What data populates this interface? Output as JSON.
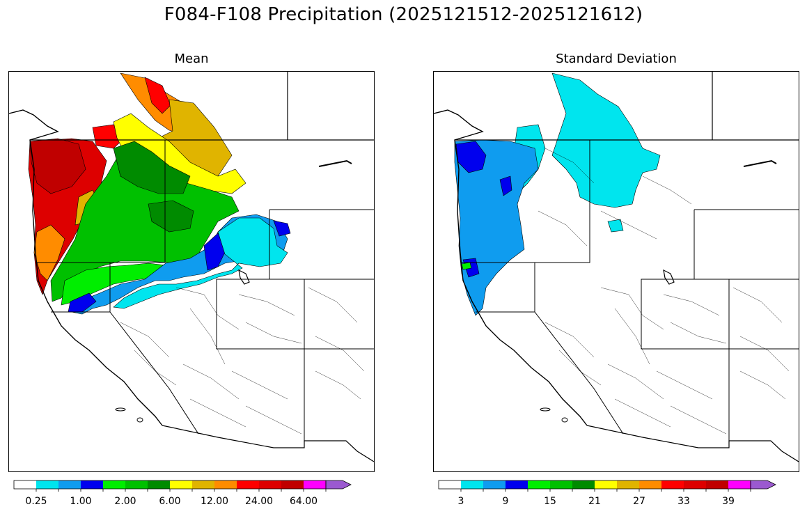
{
  "figure": {
    "title": "F084-F108 Precipitation (2025121512-2025121612)"
  },
  "panels": {
    "mean": {
      "title": "Mean",
      "colorbar": {
        "colors": [
          "#ffffff",
          "#00e5ee",
          "#0f9cef",
          "#0000ee",
          "#00ee00",
          "#00c000",
          "#008b00",
          "#ffff00",
          "#e0b400",
          "#ff8c00",
          "#ff0000",
          "#dd0000",
          "#c00000",
          "#ff00ff",
          "#9b59d0"
        ],
        "tick_labels": [
          "0.25",
          "1.00",
          "2.00",
          "6.00",
          "12.00",
          "24.00",
          "64.00"
        ],
        "tick_bins": [
          1,
          3,
          5,
          7,
          9,
          11,
          13
        ]
      }
    },
    "stdev": {
      "title": "Standard Deviation",
      "colorbar": {
        "colors": [
          "#ffffff",
          "#00e5ee",
          "#0f9cef",
          "#0000ee",
          "#00ee00",
          "#00c000",
          "#008b00",
          "#ffff00",
          "#e0b400",
          "#ff8c00",
          "#ff0000",
          "#dd0000",
          "#c00000",
          "#ff00ff",
          "#9b59d0"
        ],
        "tick_labels": [
          "3",
          "9",
          "15",
          "21",
          "27",
          "33",
          "39"
        ],
        "tick_bins": [
          1,
          3,
          5,
          7,
          9,
          11,
          13
        ]
      }
    }
  }
}
